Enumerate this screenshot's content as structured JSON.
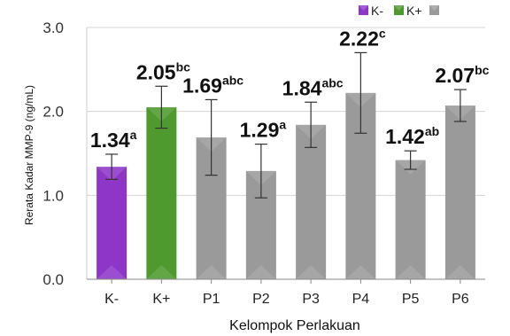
{
  "chart_data": {
    "type": "bar",
    "xlabel": "Kelompok Perlakuan",
    "ylabel": "Rerata Kadar MMP-9 (ng/mL)",
    "ylim": [
      0,
      3
    ],
    "yticks": [
      "0.0",
      "1.0",
      "2.0",
      "3.0"
    ],
    "grid": "horizontal",
    "legend_position": "top-right",
    "legend": [
      {
        "label": "K-",
        "color": "#8e36c8"
      },
      {
        "label": "K+",
        "color": "#4e9a2e"
      },
      {
        "label": "",
        "color": "#9a9a9a"
      }
    ],
    "categories": [
      "K-",
      "K+",
      "P1",
      "P2",
      "P3",
      "P4",
      "P5",
      "P6"
    ],
    "values": [
      1.34,
      2.05,
      1.69,
      1.29,
      1.84,
      2.22,
      1.42,
      2.07
    ],
    "errors": [
      0.15,
      0.25,
      0.45,
      0.32,
      0.27,
      0.48,
      0.11,
      0.19
    ],
    "value_labels": [
      "1.34",
      "2.05",
      "1.69",
      "1.29",
      "1.84",
      "2.22",
      "1.42",
      "2.07"
    ],
    "superscripts": [
      "a",
      "bc",
      "abc",
      "a",
      "abc",
      "c",
      "ab",
      "bc"
    ],
    "colors": [
      "#8e36c8",
      "#4e9a2e",
      "#9a9a9a",
      "#9a9a9a",
      "#9a9a9a",
      "#9a9a9a",
      "#9a9a9a",
      "#9a9a9a"
    ]
  }
}
